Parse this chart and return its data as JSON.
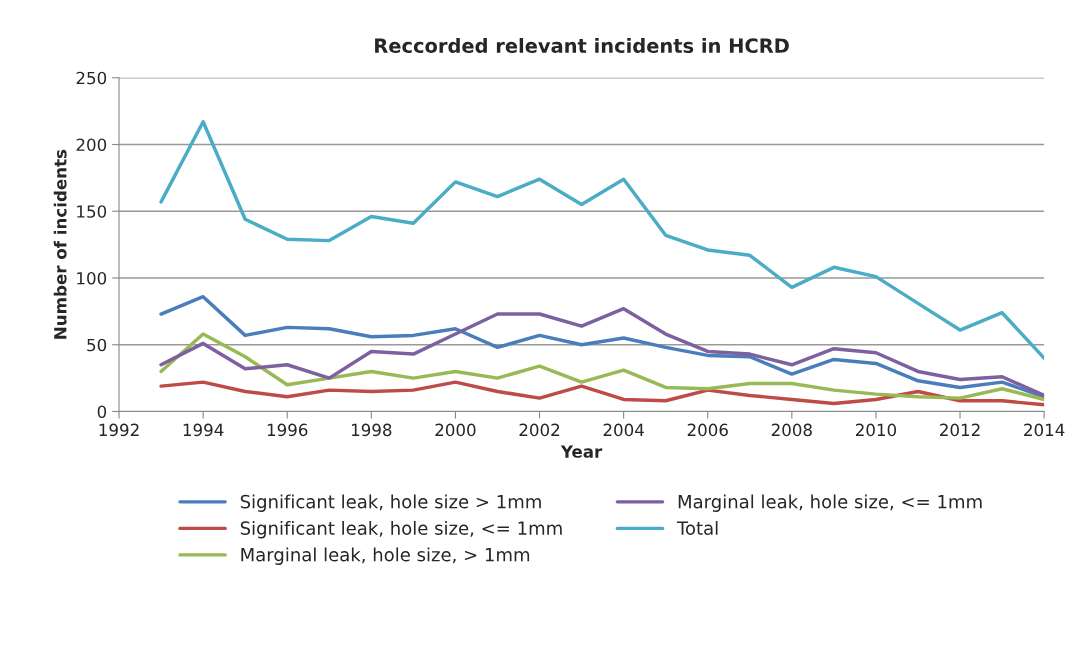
{
  "chart_data": {
    "type": "line",
    "title": "Reccorded relevant incidents in HCRD",
    "xlabel": "Year",
    "ylabel": "Number of incidents",
    "x": [
      1993,
      1994,
      1995,
      1996,
      1997,
      1998,
      1999,
      2000,
      2001,
      2002,
      2003,
      2004,
      2005,
      2006,
      2007,
      2008,
      2009,
      2010,
      2011,
      2012,
      2013,
      2014
    ],
    "series": [
      {
        "name": "Significant leak, hole size > 1mm",
        "color": "#4a7ebb",
        "values": [
          73,
          86,
          57,
          63,
          62,
          56,
          57,
          62,
          48,
          57,
          50,
          55,
          48,
          42,
          41,
          28,
          39,
          36,
          23,
          18,
          22,
          11
        ]
      },
      {
        "name": "Significant leak, hole size, <= 1mm",
        "color": "#be4b48",
        "values": [
          19,
          22,
          15,
          11,
          16,
          15,
          16,
          22,
          15,
          10,
          19,
          9,
          8,
          16,
          12,
          9,
          6,
          9,
          15,
          8,
          8,
          5
        ]
      },
      {
        "name": "Marginal leak, hole size, > 1mm",
        "color": "#98b954",
        "values": [
          30,
          58,
          41,
          20,
          25,
          30,
          25,
          30,
          25,
          34,
          22,
          31,
          18,
          17,
          21,
          21,
          16,
          13,
          11,
          10,
          17,
          9
        ]
      },
      {
        "name": "Marginal leak, hole size, <= 1mm",
        "color": "#7d60a0",
        "values": [
          35,
          51,
          32,
          35,
          25,
          45,
          43,
          58,
          73,
          73,
          64,
          77,
          58,
          45,
          43,
          35,
          47,
          44,
          30,
          24,
          26,
          12
        ]
      },
      {
        "name": "Total",
        "color": "#4bacc6",
        "values": [
          157,
          217,
          144,
          129,
          128,
          146,
          141,
          172,
          161,
          174,
          155,
          174,
          132,
          121,
          117,
          93,
          108,
          101,
          81,
          61,
          74,
          40
        ]
      }
    ],
    "xlim": [
      1992,
      2014
    ],
    "xticks": [
      1992,
      1994,
      1996,
      1998,
      2000,
      2002,
      2004,
      2006,
      2008,
      2010,
      2012,
      2014
    ],
    "ylim": [
      0,
      250
    ],
    "yticks": [
      0,
      50,
      100,
      150,
      200,
      250
    ],
    "grid": "y",
    "legend": "bottom",
    "marker": "none",
    "line_style": "solid"
  }
}
